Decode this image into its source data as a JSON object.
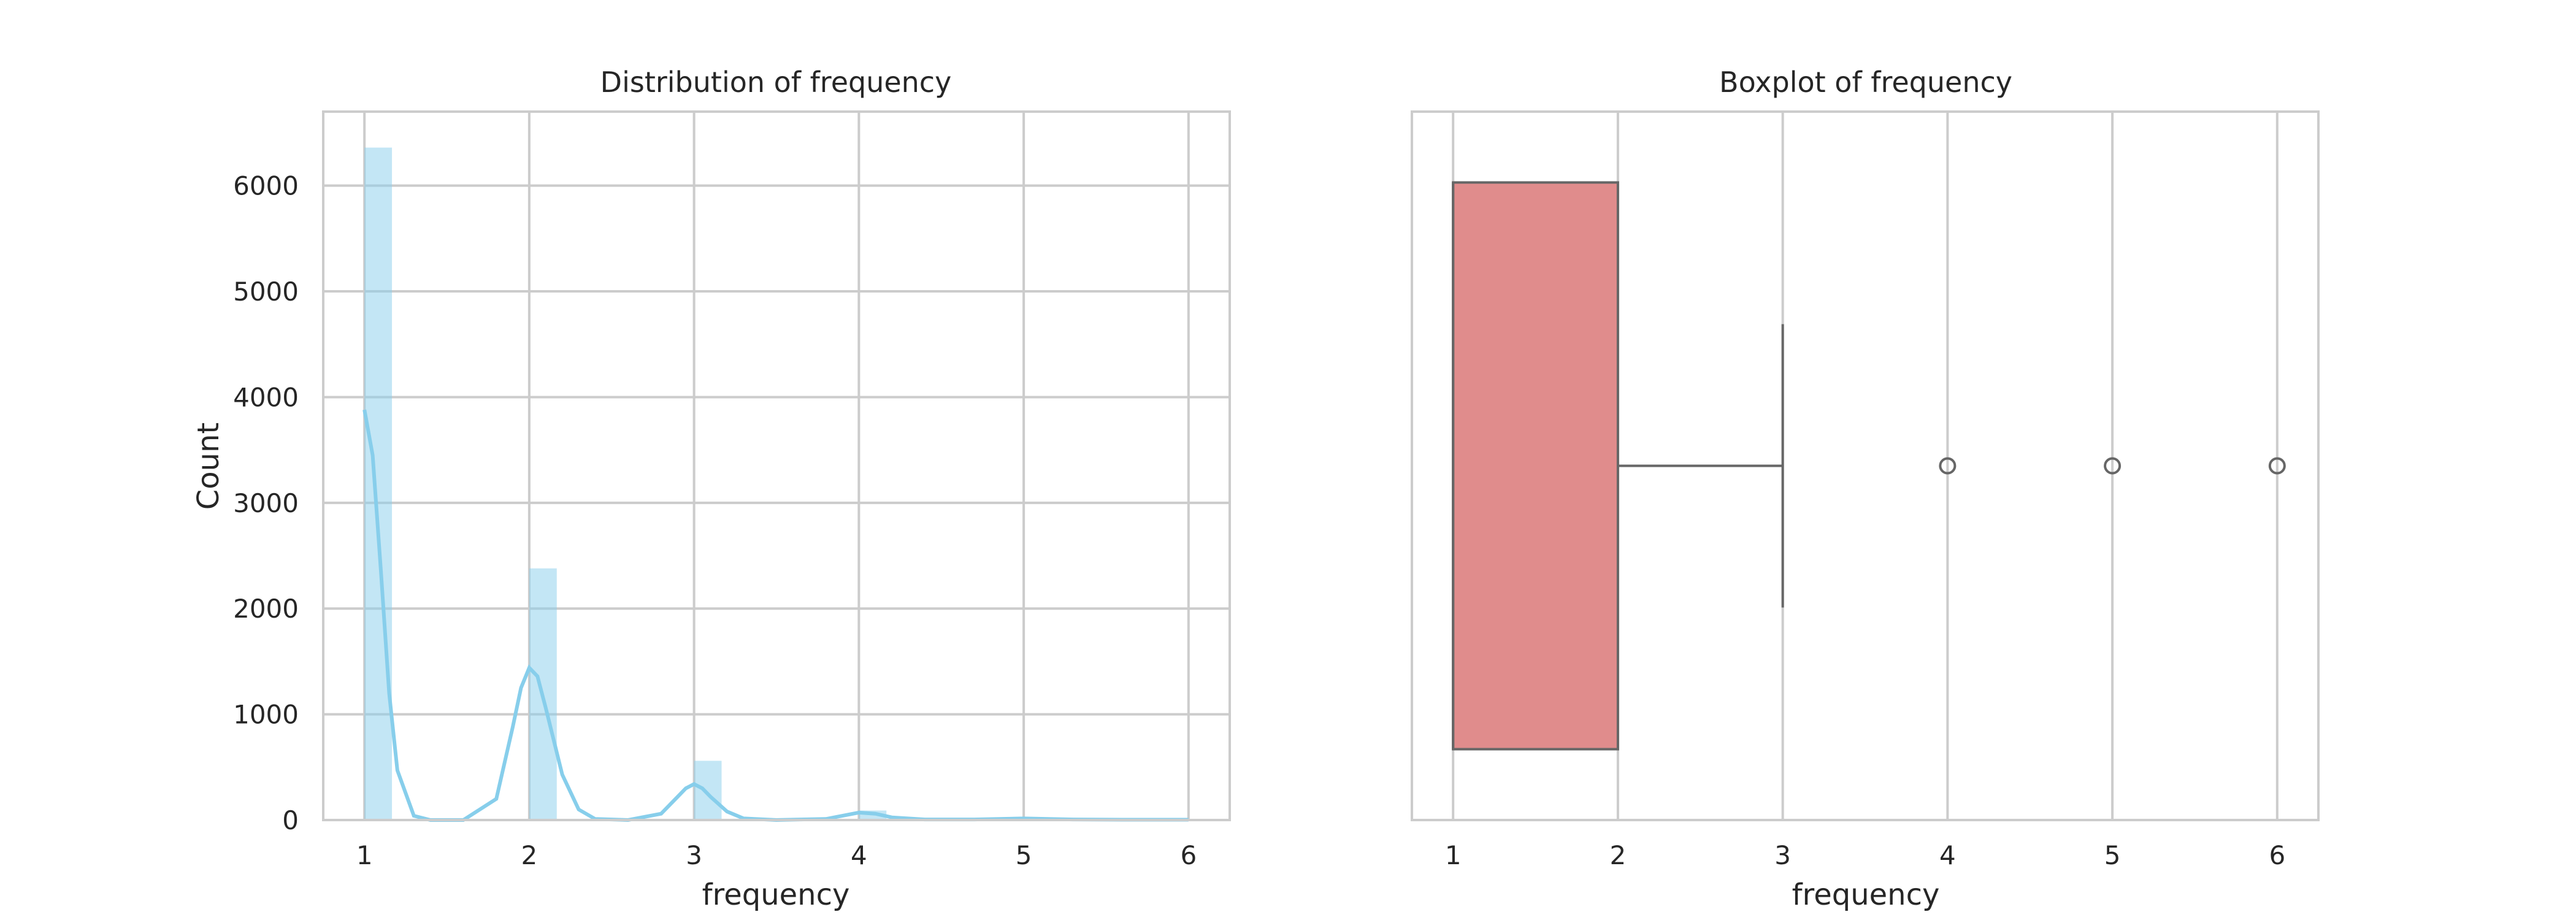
{
  "chart_data": [
    {
      "type": "bar",
      "title": "Distribution of frequency",
      "xlabel": "frequency",
      "ylabel": "Count",
      "xlim": [
        0.75,
        6.25
      ],
      "ylim": [
        0,
        6700
      ],
      "xticks": [
        1,
        2,
        3,
        4,
        5,
        6
      ],
      "yticks": [
        0,
        1000,
        2000,
        3000,
        4000,
        5000,
        6000
      ],
      "grid": true,
      "bar_color": "#87ceeb",
      "kde_color": "#87ceeb",
      "bins": [
        {
          "x0": 1.0,
          "x1": 1.167,
          "count": 6360
        },
        {
          "x0": 2.0,
          "x1": 2.167,
          "count": 2380
        },
        {
          "x0": 3.0,
          "x1": 3.167,
          "count": 560
        },
        {
          "x0": 4.0,
          "x1": 4.167,
          "count": 90
        },
        {
          "x0": 5.0,
          "x1": 5.167,
          "count": 20
        },
        {
          "x0": 6.0,
          "x1": 6.167,
          "count": 5
        }
      ],
      "kde": {
        "x": [
          1.0,
          1.05,
          1.1,
          1.15,
          1.2,
          1.3,
          1.4,
          1.6,
          1.8,
          1.9,
          1.95,
          2.0,
          2.05,
          2.1,
          2.2,
          2.3,
          2.4,
          2.6,
          2.8,
          2.9,
          2.95,
          3.0,
          3.05,
          3.1,
          3.2,
          3.3,
          3.5,
          3.8,
          3.9,
          4.0,
          4.1,
          4.2,
          4.4,
          4.7,
          5.0,
          5.3,
          5.6,
          6.0
        ],
        "y": [
          3880,
          3450,
          2350,
          1200,
          470,
          40,
          0,
          0,
          200,
          880,
          1250,
          1440,
          1360,
          1060,
          430,
          100,
          10,
          0,
          60,
          220,
          300,
          340,
          300,
          220,
          80,
          15,
          0,
          10,
          40,
          70,
          60,
          25,
          5,
          5,
          15,
          5,
          3,
          3
        ]
      }
    },
    {
      "type": "box",
      "title": "Boxplot of frequency",
      "xlabel": "frequency",
      "xlim": [
        0.75,
        6.25
      ],
      "xticks": [
        1,
        2,
        3,
        4,
        5,
        6
      ],
      "grid": true,
      "box_color": "#e08c8c",
      "line_color": "#666666",
      "stats": {
        "q1": 1,
        "median": 1,
        "q3": 2,
        "whisker_low": 1,
        "whisker_high": 3
      },
      "outliers": [
        4,
        5,
        6
      ]
    }
  ]
}
